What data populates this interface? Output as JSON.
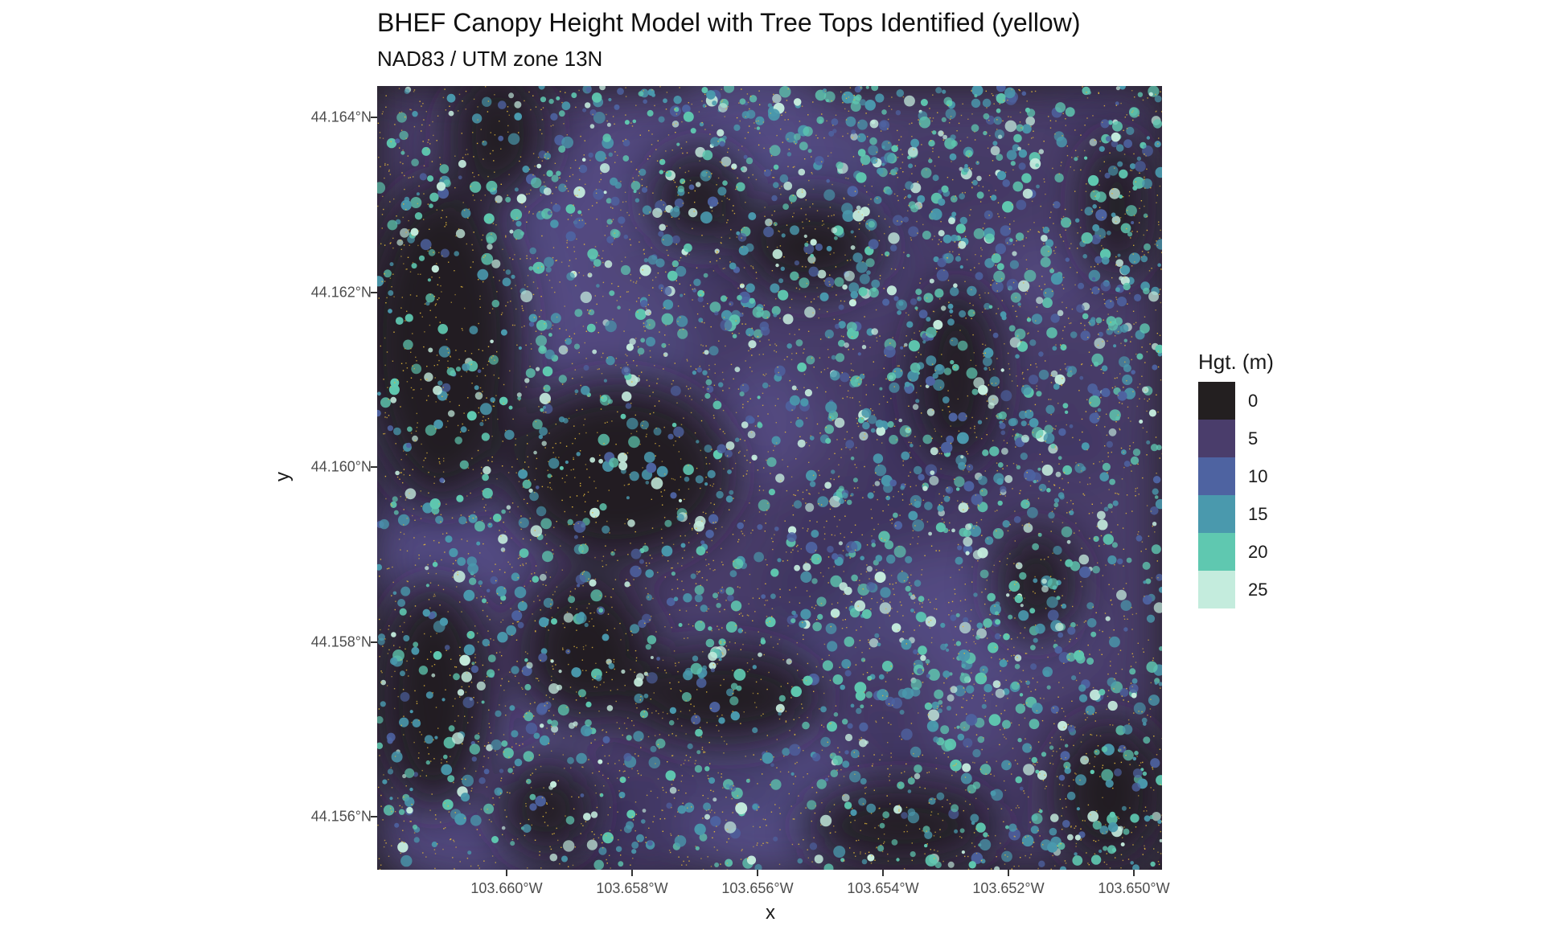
{
  "title": "BHEF Canopy Height Model with Tree Tops Identified (yellow)",
  "subtitle": "NAD83 / UTM zone 13N",
  "axes": {
    "x_label": "x",
    "y_label": "y",
    "x_ticks": [
      "103.660°W",
      "103.658°W",
      "103.656°W",
      "103.654°W",
      "103.652°W",
      "103.650°W"
    ],
    "y_ticks": [
      "44.164°N",
      "44.162°N",
      "44.160°N",
      "44.158°N",
      "44.156°N"
    ]
  },
  "legend": {
    "title": "Hgt. (m)",
    "entries": [
      {
        "label": "0",
        "color": "#231f20"
      },
      {
        "label": "5",
        "color": "#4a3d6b"
      },
      {
        "label": "10",
        "color": "#4e63a1"
      },
      {
        "label": "15",
        "color": "#4a99ad"
      },
      {
        "label": "20",
        "color": "#5fc8b0"
      },
      {
        "label": "25",
        "color": "#c4ecdd"
      }
    ]
  },
  "tree_top_color": "#e0b63a"
}
